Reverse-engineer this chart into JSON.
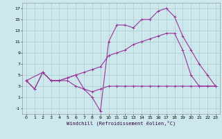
{
  "xlabel": "Windchill (Refroidissement éolien,°C)",
  "background_color": "#cce8ec",
  "grid_color": "#aacccc",
  "line_color": "#993399",
  "xlim": [
    -0.5,
    23.5
  ],
  "ylim": [
    -2,
    18
  ],
  "xticks": [
    0,
    1,
    2,
    3,
    4,
    5,
    6,
    7,
    8,
    9,
    10,
    11,
    12,
    13,
    14,
    15,
    16,
    17,
    18,
    19,
    20,
    21,
    22,
    23
  ],
  "yticks": [
    -1,
    1,
    3,
    5,
    7,
    9,
    11,
    13,
    15,
    17
  ],
  "lines": [
    {
      "x": [
        0,
        1,
        2,
        3,
        4,
        5,
        6,
        7,
        8,
        9,
        10,
        11,
        12,
        13,
        14,
        15,
        16,
        17,
        18,
        19,
        20,
        21,
        22,
        23
      ],
      "y": [
        4,
        2.5,
        5.5,
        4,
        4,
        4,
        3,
        2.5,
        2,
        2.5,
        3,
        3,
        3,
        3,
        3,
        3,
        3,
        3,
        3,
        3,
        3,
        3,
        3,
        3
      ]
    },
    {
      "x": [
        0,
        1,
        2,
        3,
        4,
        5,
        6,
        7,
        8,
        9,
        10,
        11,
        12,
        13,
        14,
        15,
        16,
        17,
        18,
        19,
        20,
        21,
        22,
        23
      ],
      "y": [
        4,
        2.5,
        5.5,
        4,
        4,
        4.5,
        5,
        5.5,
        6,
        6.5,
        8.5,
        9,
        9.5,
        10.5,
        11,
        11.5,
        12,
        12.5,
        12.5,
        9.5,
        5,
        3,
        3,
        3
      ]
    },
    {
      "x": [
        0,
        2,
        3,
        4,
        5,
        6,
        7,
        8,
        9,
        10,
        11,
        12,
        13,
        14,
        15,
        16,
        17,
        18,
        19,
        20,
        21,
        22,
        23
      ],
      "y": [
        4,
        5.5,
        4,
        4,
        4.5,
        5,
        2.5,
        1,
        -1.5,
        11,
        14,
        14,
        13.5,
        15,
        15,
        16.5,
        17,
        15.5,
        12,
        9.5,
        7,
        5,
        3
      ]
    }
  ]
}
